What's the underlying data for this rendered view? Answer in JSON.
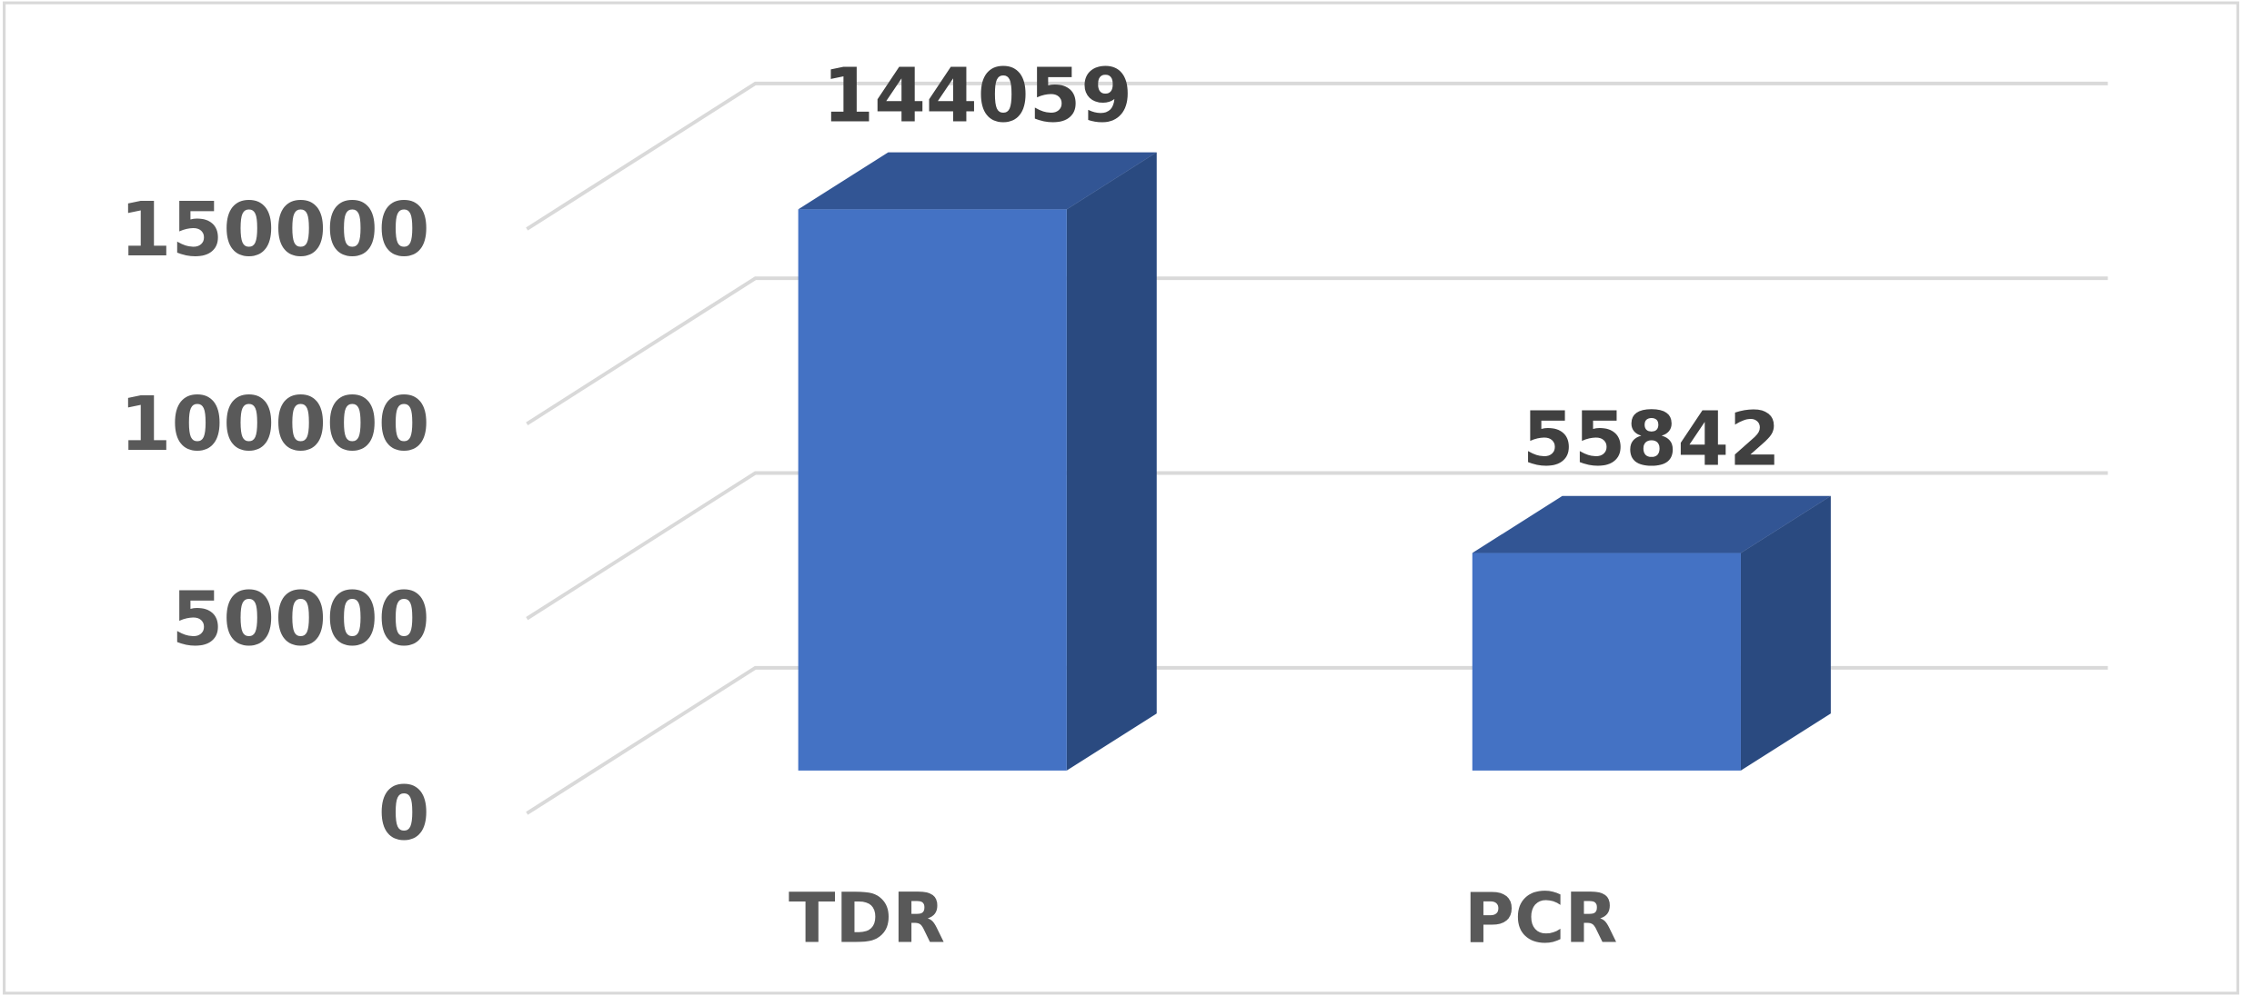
{
  "chart_data": {
    "type": "bar",
    "categories": [
      "TDR",
      "PCR"
    ],
    "values": [
      144059,
      55842
    ],
    "color": "#4472c4",
    "ylim": [
      0,
      150000
    ],
    "yticks": [
      0,
      50000,
      100000,
      150000
    ],
    "grid": true
  }
}
